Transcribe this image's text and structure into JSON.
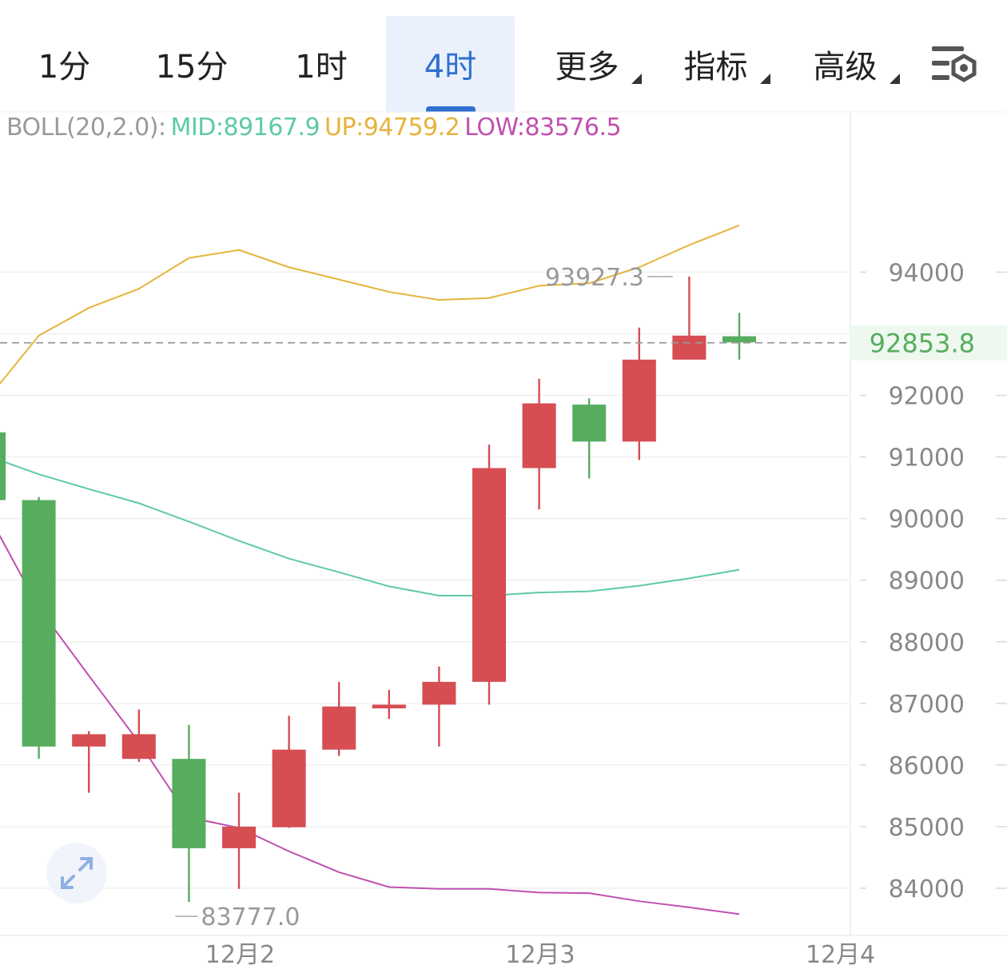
{
  "tabs": [
    {
      "label": "1分",
      "active": false,
      "dropdown": false
    },
    {
      "label": "15分",
      "active": false,
      "dropdown": false
    },
    {
      "label": "1时",
      "active": false,
      "dropdown": false
    },
    {
      "label": "4时",
      "active": true,
      "dropdown": false
    },
    {
      "label": "更多",
      "active": false,
      "dropdown": true
    },
    {
      "label": "指标",
      "active": false,
      "dropdown": true
    },
    {
      "label": "高级",
      "active": false,
      "dropdown": true
    }
  ],
  "settings_icon": "chart-settings-icon",
  "boll": {
    "name": "BOLL(20,2.0):",
    "mid_label": "MID:89167.9",
    "up_label": "UP:94759.2",
    "low_label": "LOW:83576.5"
  },
  "colors": {
    "up": "#d64d52",
    "down": "#56ad5e",
    "mid": "#5ec9a8",
    "upper": "#e6b33b",
    "lower": "#c050b0",
    "active_tab": "#2f6fd1",
    "grid": "#f0f0f0",
    "axis_text": "#888888"
  },
  "chart_data": {
    "type": "candlestick",
    "y_axis": {
      "ticks": [
        84000,
        85000,
        86000,
        87000,
        88000,
        89000,
        90000,
        91000,
        92000,
        94000
      ],
      "min": 83300,
      "max": 96300,
      "position": "right"
    },
    "x_axis": {
      "labels": [
        {
          "index": 4,
          "label": "12月2"
        },
        {
          "index": 10,
          "label": "12月3"
        },
        {
          "index": 16,
          "label": "12月4"
        }
      ]
    },
    "current_price": {
      "value": 92853.8,
      "label": "92853.8",
      "color": "#56ad5e"
    },
    "max_label": {
      "index": 13.8,
      "value": 93927.3,
      "label": "93927.3"
    },
    "min_label": {
      "index": 3.6,
      "value": 83777.0,
      "label": "83777.0"
    },
    "candles": [
      {
        "open": 91400,
        "close": 90300,
        "high": 91400,
        "low": 90300
      },
      {
        "open": 90300,
        "close": 86300,
        "high": 90350,
        "low": 86100
      },
      {
        "open": 86300,
        "close": 86500,
        "high": 86550,
        "low": 85550
      },
      {
        "open": 86100,
        "close": 86500,
        "high": 86900,
        "low": 86050
      },
      {
        "open": 86100,
        "close": 84650,
        "high": 86650,
        "low": 83777
      },
      {
        "open": 84650,
        "close": 85000,
        "high": 85550,
        "low": 83990
      },
      {
        "open": 84990,
        "close": 86250,
        "high": 86800,
        "low": 84980
      },
      {
        "open": 86250,
        "close": 86950,
        "high": 87350,
        "low": 86150
      },
      {
        "open": 86920,
        "close": 86980,
        "high": 87220,
        "low": 86750
      },
      {
        "open": 86980,
        "close": 87350,
        "high": 87600,
        "low": 86300
      },
      {
        "open": 87350,
        "close": 90820,
        "high": 91200,
        "low": 86980
      },
      {
        "open": 90820,
        "close": 91870,
        "high": 92270,
        "low": 90150
      },
      {
        "open": 91850,
        "close": 91250,
        "high": 91950,
        "low": 90650
      },
      {
        "open": 91250,
        "close": 92580,
        "high": 93100,
        "low": 90950
      },
      {
        "open": 92580,
        "close": 92970,
        "high": 93927.3,
        "low": 92580
      },
      {
        "open": 92960,
        "close": 92860,
        "high": 93340,
        "low": 92580
      }
    ],
    "series": [
      {
        "name": "MID",
        "values": [
          91000,
          90720,
          90480,
          90250,
          89950,
          89640,
          89350,
          89130,
          88900,
          88750,
          88750,
          88800,
          88820,
          88910,
          89030,
          89170
        ]
      },
      {
        "name": "UP",
        "values": [
          92000,
          92970,
          93420,
          93730,
          94230,
          94360,
          94080,
          93880,
          93680,
          93550,
          93580,
          93780,
          93820,
          94080,
          94440,
          94760
        ]
      },
      {
        "name": "LOW",
        "values": [
          90000,
          88550,
          87450,
          86370,
          85150,
          84980,
          84600,
          84260,
          84020,
          83990,
          83990,
          83930,
          83920,
          83790,
          83690,
          83580
        ]
      }
    ]
  }
}
